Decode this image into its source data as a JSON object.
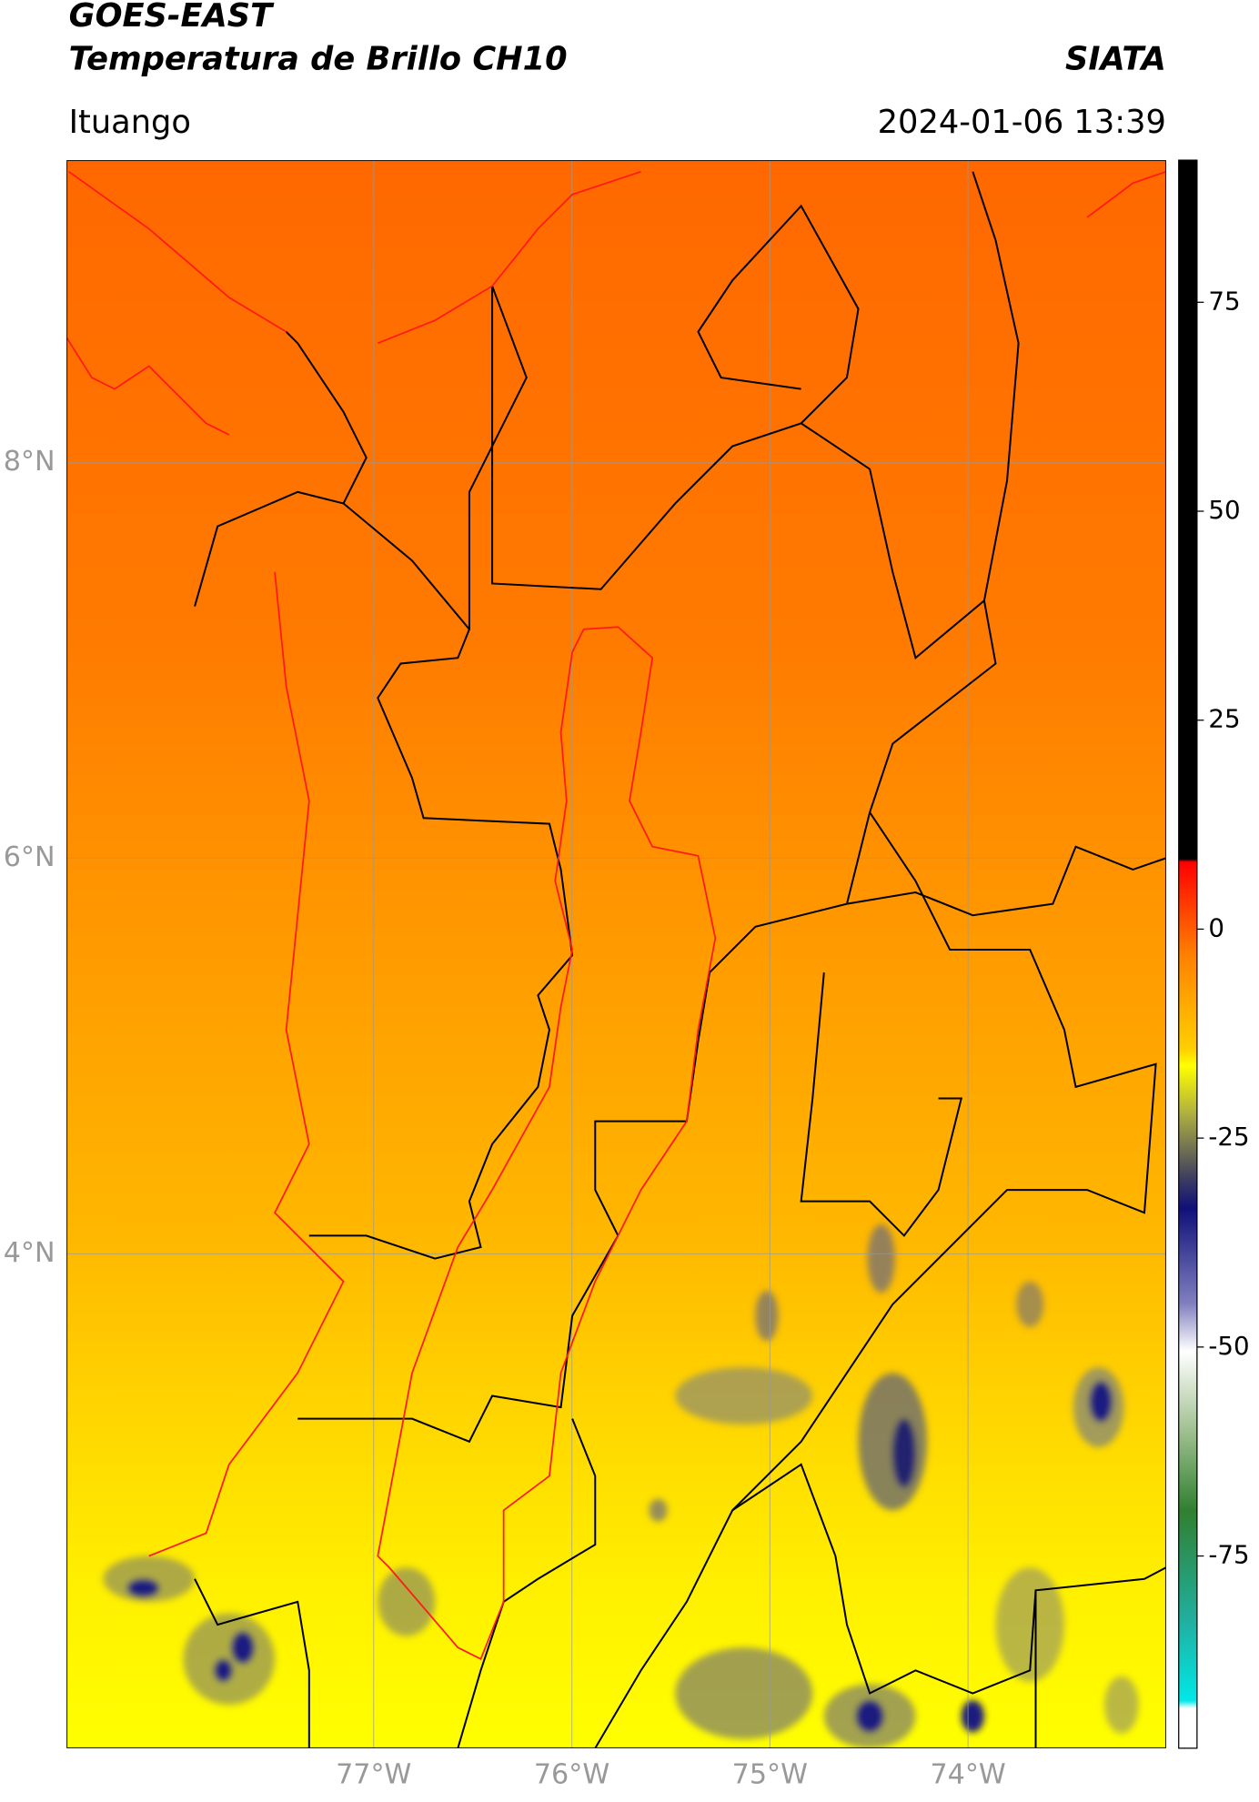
{
  "header": {
    "title": "GOES-EAST",
    "subtitle": "Temperatura de Brillo CH10",
    "source": "SIATA",
    "location": "Ituango",
    "datetime": "2024-01-06 13:39"
  },
  "map": {
    "xlim": [
      -78.55,
      -73.0
    ],
    "ylim": [
      1.5,
      9.53
    ],
    "xticks": [
      {
        "value": -77,
        "label": "77°W"
      },
      {
        "value": -76,
        "label": "76°W"
      },
      {
        "value": -75,
        "label": "75°W"
      },
      {
        "value": -74,
        "label": "74°W"
      }
    ],
    "yticks": [
      {
        "value": 8,
        "label": "8°N"
      },
      {
        "value": 6,
        "label": "6°N"
      },
      {
        "value": 4,
        "label": "4°N"
      }
    ],
    "grid": true
  },
  "colorbar": {
    "lim": [
      -98,
      92
    ],
    "ticks": [
      75,
      50,
      25,
      0,
      -25,
      -50,
      -75
    ]
  }
}
